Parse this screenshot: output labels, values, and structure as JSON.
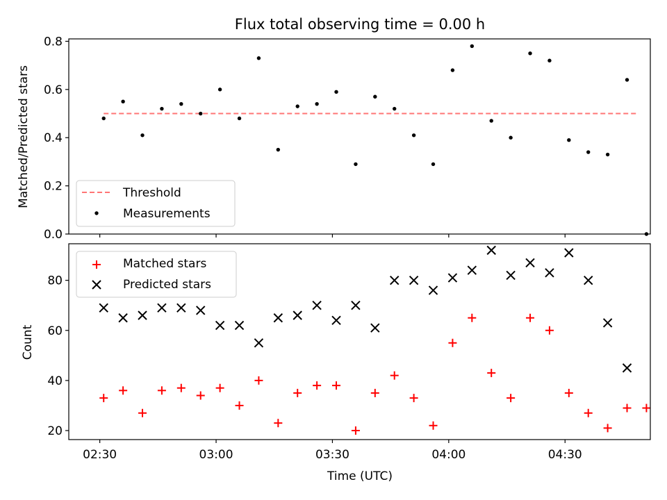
{
  "chart_data": [
    {
      "type": "scatter",
      "title": "Flux total observing time = 0.00 h",
      "ylabel": "Matched/Predicted stars",
      "ylim": [
        0,
        0.81
      ],
      "xlim": [
        "02:22",
        "04:52"
      ],
      "yticks": [
        "0.0",
        "0.2",
        "0.4",
        "0.6",
        "0.8"
      ],
      "grid": false,
      "legend_position": "lower-left",
      "x": [
        "02:31",
        "02:36",
        "02:41",
        "02:46",
        "02:51",
        "02:56",
        "03:01",
        "03:06",
        "03:11",
        "03:16",
        "03:21",
        "03:26",
        "03:31",
        "03:36",
        "03:41",
        "03:46",
        "03:51",
        "03:56",
        "04:01",
        "04:06",
        "04:11",
        "04:16",
        "04:21",
        "04:26",
        "04:31",
        "04:36",
        "04:41",
        "04:46",
        "04:51"
      ],
      "series": [
        {
          "name": "Measurements",
          "color": "#000000",
          "marker": "dot",
          "values": [
            0.48,
            0.55,
            0.41,
            0.52,
            0.54,
            0.5,
            0.6,
            0.48,
            0.73,
            0.35,
            0.53,
            0.54,
            0.59,
            0.29,
            0.57,
            0.52,
            0.41,
            0.29,
            0.68,
            0.78,
            0.47,
            0.4,
            0.75,
            0.72,
            0.39,
            0.34,
            0.33,
            0.64,
            0.0
          ]
        },
        {
          "name": "Threshold",
          "color": "#ff7575",
          "style": "dashed",
          "x": [
            "02:31",
            "04:49"
          ],
          "values": [
            0.5,
            0.5
          ]
        }
      ]
    },
    {
      "type": "scatter",
      "xlabel": "Time (UTC)",
      "ylabel": "Count",
      "ylim": [
        16.4,
        94.6
      ],
      "xlim": [
        "02:22",
        "04:52"
      ],
      "yticks": [
        "20",
        "40",
        "60",
        "80"
      ],
      "xticks": [
        "02:30",
        "03:00",
        "03:30",
        "04:00",
        "04:30"
      ],
      "grid": false,
      "legend_position": "top-left",
      "series": [
        {
          "name": "Matched stars",
          "color": "#ff0000",
          "marker": "plus",
          "x": [
            "02:31",
            "02:36",
            "02:41",
            "02:46",
            "02:51",
            "02:56",
            "03:01",
            "03:06",
            "03:11",
            "03:16",
            "03:21",
            "03:26",
            "03:31",
            "03:36",
            "03:41",
            "03:46",
            "03:51",
            "03:56",
            "04:01",
            "04:06",
            "04:11",
            "04:16",
            "04:21",
            "04:26",
            "04:31",
            "04:36",
            "04:41",
            "04:46",
            "04:51"
          ],
          "values": [
            33,
            36,
            27,
            36,
            37,
            34,
            37,
            30,
            40,
            23,
            35,
            38,
            38,
            20,
            35,
            42,
            33,
            22,
            55,
            65,
            43,
            33,
            65,
            60,
            35,
            27,
            21,
            29,
            29
          ]
        },
        {
          "name": "Predicted stars",
          "color": "#000000",
          "marker": "x",
          "x": [
            "02:31",
            "02:36",
            "02:41",
            "02:46",
            "02:51",
            "02:56",
            "03:01",
            "03:06",
            "03:11",
            "03:16",
            "03:21",
            "03:26",
            "03:31",
            "03:36",
            "03:41",
            "03:46",
            "03:51",
            "03:56",
            "04:01",
            "04:06",
            "04:11",
            "04:16",
            "04:21",
            "04:26",
            "04:31",
            "04:36",
            "04:41",
            "04:46"
          ],
          "values": [
            69,
            65,
            66,
            69,
            69,
            68,
            62,
            62,
            55,
            65,
            66,
            70,
            64,
            70,
            61,
            80,
            80,
            76,
            81,
            84,
            92,
            82,
            87,
            83,
            91,
            80,
            63,
            45
          ]
        }
      ]
    }
  ]
}
